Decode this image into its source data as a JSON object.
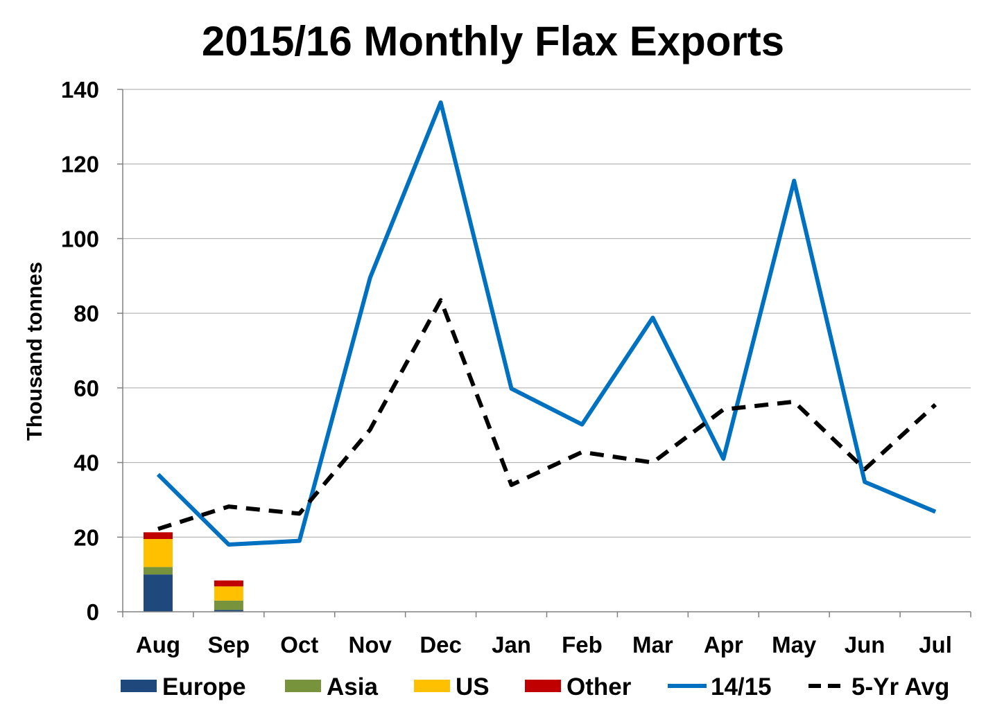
{
  "chart_data": {
    "type": "bar+line",
    "title": "2015/16 Monthly Flax Exports",
    "ylabel": "Thousand tonnes",
    "xlabel": "",
    "ylim": [
      0,
      140
    ],
    "yticks": [
      0,
      20,
      40,
      60,
      80,
      100,
      120,
      140
    ],
    "grid": true,
    "legend_position": "bottom",
    "categories": [
      "Aug",
      "Sep",
      "Oct",
      "Nov",
      "Dec",
      "Jan",
      "Feb",
      "Mar",
      "Apr",
      "May",
      "Jun",
      "Jul"
    ],
    "bar_series": [
      {
        "name": "Europe",
        "color": "#1f497d",
        "values": [
          10,
          0.5,
          null,
          null,
          null,
          null,
          null,
          null,
          null,
          null,
          null,
          null
        ]
      },
      {
        "name": "Asia",
        "color": "#77933c",
        "values": [
          2,
          2.5,
          null,
          null,
          null,
          null,
          null,
          null,
          null,
          null,
          null,
          null
        ]
      },
      {
        "name": "US",
        "color": "#ffc000",
        "values": [
          7.5,
          3.8,
          null,
          null,
          null,
          null,
          null,
          null,
          null,
          null,
          null,
          null
        ]
      },
      {
        "name": "Other",
        "color": "#c00000",
        "values": [
          1.8,
          1.6,
          null,
          null,
          null,
          null,
          null,
          null,
          null,
          null,
          null,
          null
        ]
      }
    ],
    "line_series": [
      {
        "name": "14/15",
        "color": "#0070c0",
        "style": "solid",
        "values": [
          36.8,
          18,
          19,
          89.5,
          136.5,
          59.8,
          50.2,
          78.8,
          41,
          115.5,
          34.8,
          26.8
        ]
      },
      {
        "name": "5-Yr Avg",
        "color": "#000000",
        "style": "dashed",
        "values": [
          22.2,
          28.2,
          26.3,
          48.8,
          83.5,
          34,
          42.8,
          40,
          54.2,
          56.3,
          38.2,
          55.5
        ]
      }
    ]
  }
}
